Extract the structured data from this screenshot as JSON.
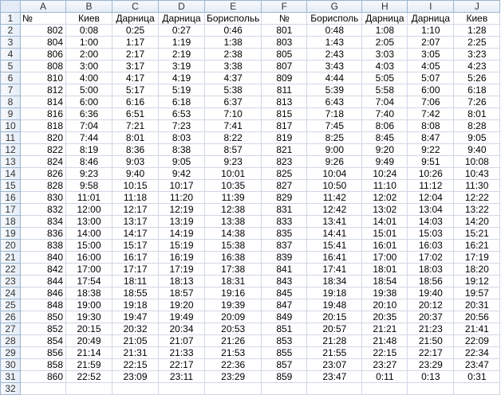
{
  "columns": [
    "A",
    "B",
    "C",
    "D",
    "E",
    "F",
    "G",
    "H",
    "I",
    "J"
  ],
  "header_row": [
    "№",
    "Киев",
    "Дарница",
    "Дарница",
    "Бориспольь",
    "№",
    "Борисполь",
    "Дарница",
    "Дарница",
    "Киев"
  ],
  "rows": [
    [
      "802",
      "0:08",
      "0:25",
      "0:27",
      "0:46",
      "801",
      "0:48",
      "1:08",
      "1:10",
      "1:28"
    ],
    [
      "804",
      "1:00",
      "1:17",
      "1:19",
      "1:38",
      "803",
      "1:43",
      "2:05",
      "2:07",
      "2:25"
    ],
    [
      "806",
      "2:00",
      "2:17",
      "2:19",
      "2:38",
      "805",
      "2:43",
      "3:03",
      "3:05",
      "3:23"
    ],
    [
      "808",
      "3:00",
      "3:17",
      "3:19",
      "3:38",
      "807",
      "3:43",
      "4:03",
      "4:05",
      "4:23"
    ],
    [
      "810",
      "4:00",
      "4:17",
      "4:19",
      "4:37",
      "809",
      "4:44",
      "5:05",
      "5:07",
      "5:26"
    ],
    [
      "812",
      "5:00",
      "5:17",
      "5:19",
      "5:38",
      "811",
      "5:39",
      "5:58",
      "6:00",
      "6:18"
    ],
    [
      "814",
      "6:00",
      "6:16",
      "6:18",
      "6:37",
      "813",
      "6:43",
      "7:04",
      "7:06",
      "7:26"
    ],
    [
      "816",
      "6:36",
      "6:51",
      "6:53",
      "7:10",
      "815",
      "7:18",
      "7:40",
      "7:42",
      "8:01"
    ],
    [
      "818",
      "7:04",
      "7:21",
      "7:23",
      "7:41",
      "817",
      "7:45",
      "8:06",
      "8:08",
      "8:28"
    ],
    [
      "820",
      "7:44",
      "8:01",
      "8:03",
      "8:22",
      "819",
      "8:25",
      "8:45",
      "8:47",
      "9:05"
    ],
    [
      "822",
      "8:19",
      "8:36",
      "8:38",
      "8:57",
      "821",
      "9:00",
      "9:20",
      "9:22",
      "9:40"
    ],
    [
      "824",
      "8:46",
      "9:03",
      "9:05",
      "9:23",
      "823",
      "9:26",
      "9:49",
      "9:51",
      "10:08"
    ],
    [
      "826",
      "9:23",
      "9:40",
      "9:42",
      "10:01",
      "825",
      "10:04",
      "10:24",
      "10:26",
      "10:43"
    ],
    [
      "828",
      "9:58",
      "10:15",
      "10:17",
      "10:35",
      "827",
      "10:50",
      "11:10",
      "11:12",
      "11:30"
    ],
    [
      "830",
      "11:01",
      "11:18",
      "11:20",
      "11:39",
      "829",
      "11:42",
      "12:02",
      "12:04",
      "12:22"
    ],
    [
      "832",
      "12:00",
      "12:17",
      "12:19",
      "12:38",
      "831",
      "12:42",
      "13:02",
      "13:04",
      "13:22"
    ],
    [
      "834",
      "13:00",
      "13:17",
      "13:19",
      "13:38",
      "833",
      "13:41",
      "14:01",
      "14:03",
      "14:20"
    ],
    [
      "836",
      "14:00",
      "14:17",
      "14:19",
      "14:38",
      "835",
      "14:41",
      "15:01",
      "15:03",
      "15:21"
    ],
    [
      "838",
      "15:00",
      "15:17",
      "15:19",
      "15:38",
      "837",
      "15:41",
      "16:01",
      "16:03",
      "16:21"
    ],
    [
      "840",
      "16:00",
      "16:17",
      "16:19",
      "16:38",
      "839",
      "16:41",
      "17:00",
      "17:02",
      "17:19"
    ],
    [
      "842",
      "17:00",
      "17:17",
      "17:19",
      "17:38",
      "841",
      "17:41",
      "18:01",
      "18:03",
      "18:20"
    ],
    [
      "844",
      "17:54",
      "18:11",
      "18:13",
      "18:31",
      "843",
      "18:34",
      "18:54",
      "18:56",
      "19:12"
    ],
    [
      "846",
      "18:38",
      "18:55",
      "18:57",
      "19:16",
      "845",
      "19:18",
      "19:38",
      "19:40",
      "19:57"
    ],
    [
      "848",
      "19:00",
      "19:18",
      "19:20",
      "19:39",
      "847",
      "19:48",
      "20:10",
      "20:12",
      "20:31"
    ],
    [
      "850",
      "19:30",
      "19:47",
      "19:49",
      "20:09",
      "849",
      "20:15",
      "20:35",
      "20:37",
      "20:56"
    ],
    [
      "852",
      "20:15",
      "20:32",
      "20:34",
      "20:53",
      "851",
      "20:57",
      "21:21",
      "21:23",
      "21:41"
    ],
    [
      "854",
      "20:49",
      "21:05",
      "21:07",
      "21:26",
      "853",
      "21:28",
      "21:48",
      "21:50",
      "22:09"
    ],
    [
      "856",
      "21:14",
      "21:31",
      "21:33",
      "21:53",
      "855",
      "21:55",
      "22:15",
      "22:17",
      "22:34"
    ],
    [
      "858",
      "21:59",
      "22:15",
      "22:17",
      "22:36",
      "857",
      "23:07",
      "23:27",
      "23:29",
      "23:47"
    ],
    [
      "860",
      "22:52",
      "23:09",
      "23:11",
      "23:29",
      "859",
      "23:47",
      "0:11",
      "0:13",
      "0:31"
    ]
  ],
  "row_numbers": [
    "1",
    "2",
    "3",
    "4",
    "5",
    "6",
    "7",
    "8",
    "9",
    "10",
    "11",
    "12",
    "13",
    "14",
    "15",
    "16",
    "17",
    "18",
    "19",
    "20",
    "21",
    "22",
    "23",
    "24",
    "25",
    "26",
    "27",
    "28",
    "29",
    "30",
    "31",
    "32"
  ]
}
